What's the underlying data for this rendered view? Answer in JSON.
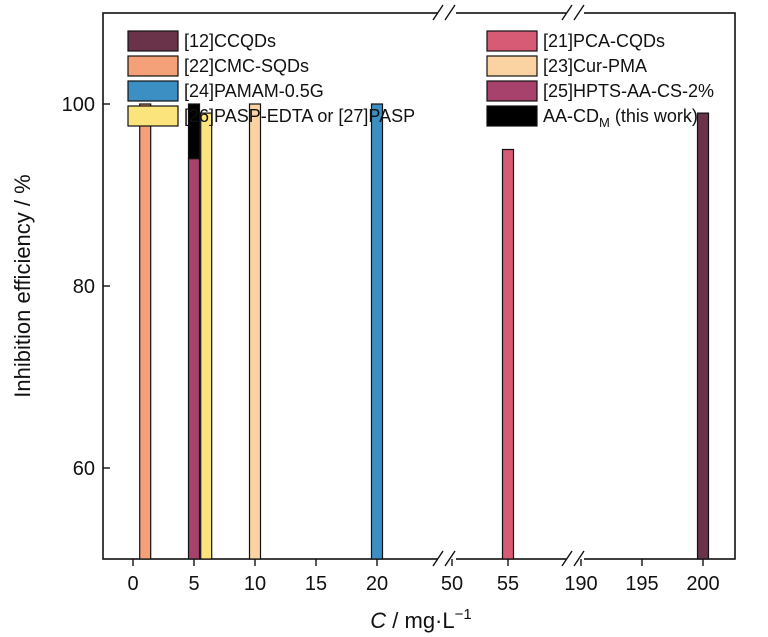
{
  "chart_data": {
    "type": "bar",
    "xlabel": {
      "var": "C",
      "unit": " / mg·L"
    },
    "ylabel": "Inhibition efficiency / %",
    "ylim": [
      50,
      110
    ],
    "y_ticks": [
      "60",
      "80",
      "100"
    ],
    "x_ticks": [
      "0",
      "5",
      "10",
      "15",
      "20",
      "50",
      "55",
      "190",
      "195",
      "200"
    ],
    "axis_breaks": [
      "20–50",
      "55–190"
    ],
    "legend_position": "top, two columns",
    "series": [
      {
        "name": "[12]CCQDs",
        "color": "#6a3349",
        "points": [
          {
            "x": 200,
            "y": 99
          }
        ]
      },
      {
        "name": "[21]PCA-CQDs",
        "color": "#d75b74",
        "points": [
          {
            "x": 55,
            "y": 95
          }
        ]
      },
      {
        "name": "[22]CMC-SQDs",
        "color": "#f4a079",
        "points": [
          {
            "x": 1,
            "y": 100
          }
        ]
      },
      {
        "name": "[23]Cur-PMA",
        "color": "#fbd3a3",
        "points": [
          {
            "x": 10,
            "y": 100
          }
        ]
      },
      {
        "name": "[24]PAMAM-0.5G",
        "color": "#3c8fc3",
        "points": [
          {
            "x": 20,
            "y": 100
          }
        ]
      },
      {
        "name": "[25]HPTS-AA-CS-2%",
        "color": "#a6426b",
        "points": [
          {
            "x": 5,
            "y": 94
          }
        ]
      },
      {
        "name": "[26]PASP-EDTA or [27]PASP",
        "color": "#fbe47c",
        "points": [
          {
            "x": 6,
            "y": 99
          }
        ]
      },
      {
        "name": "AA-CD",
        "color": "#000000",
        "points": [
          {
            "x": 5,
            "y": 100,
            "base": 94
          }
        ]
      }
    ]
  },
  "legend": {
    "aacd_sub": "M",
    "aacd_note": " (this work)"
  },
  "axis": {
    "exp_sign": "−",
    "exp_one": "1"
  }
}
